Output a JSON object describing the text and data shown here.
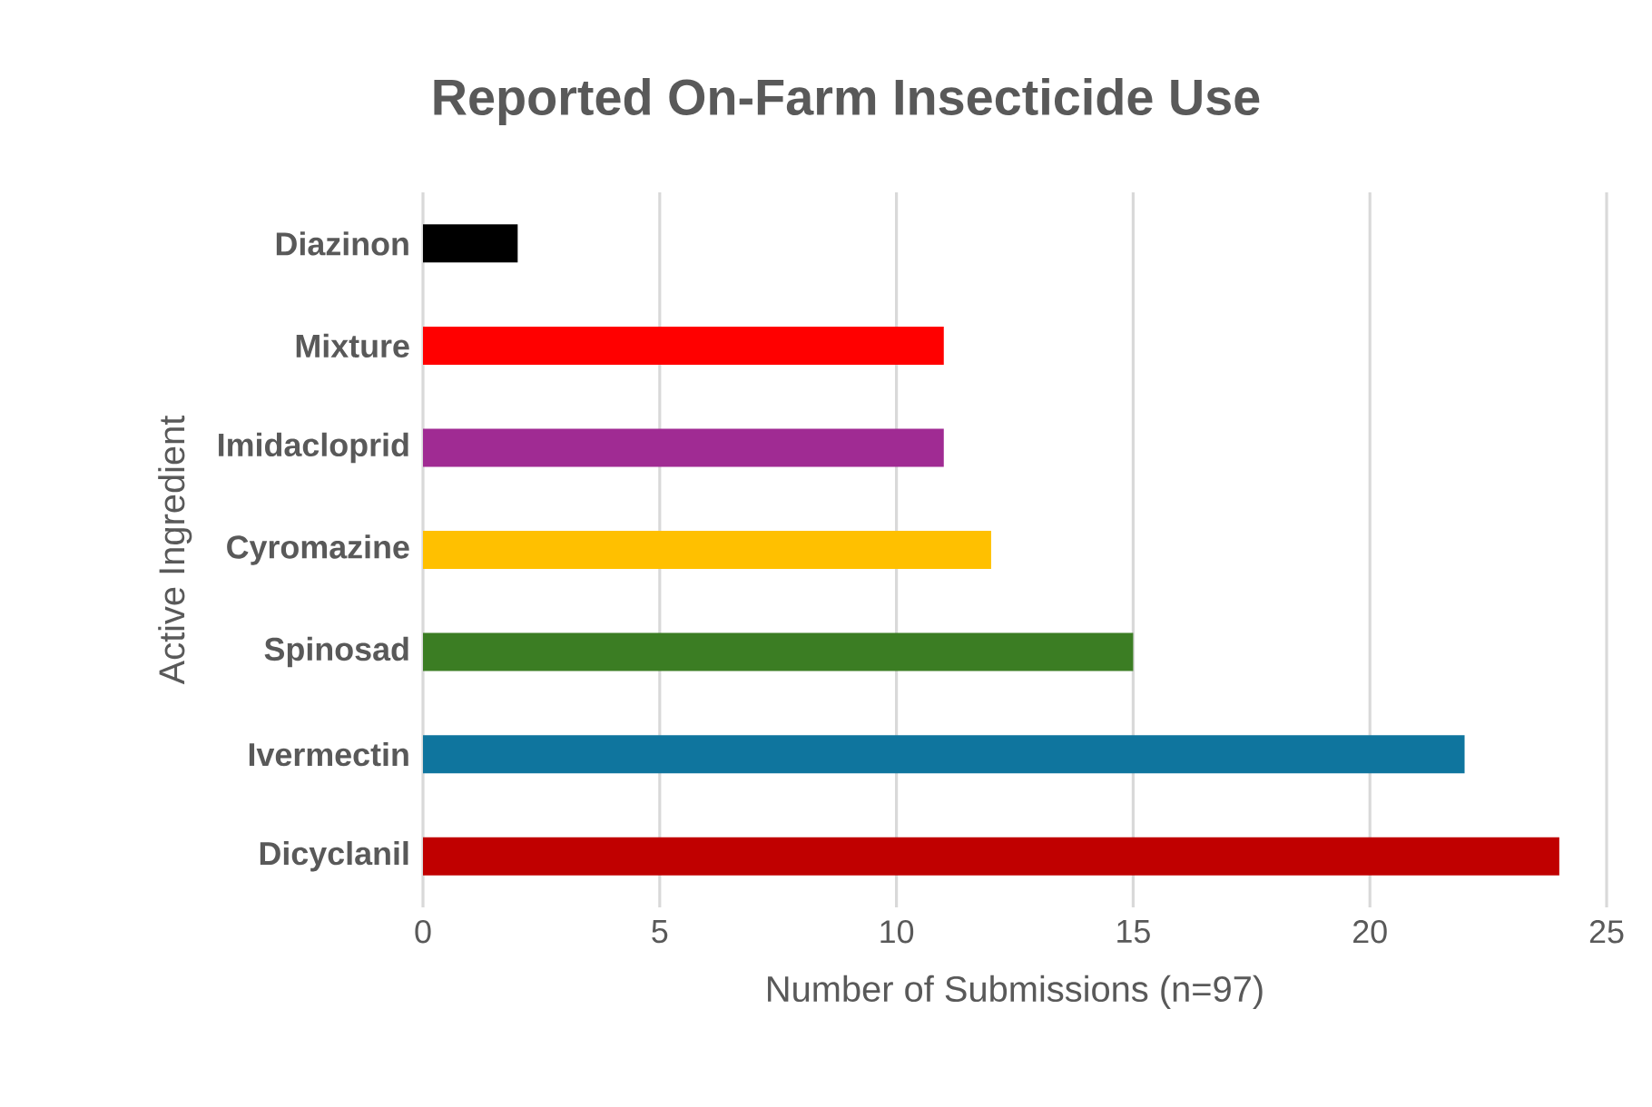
{
  "chart_data": {
    "type": "bar",
    "orientation": "horizontal",
    "title": "Reported On-Farm Insecticide Use",
    "xlabel": "Number of Submissions (n=97)",
    "ylabel": "Active Ingredient",
    "categories": [
      "Diazinon",
      "Mixture",
      "Imidacloprid",
      "Cyromazine",
      "Spinosad",
      "Ivermectin",
      "Dicyclanil"
    ],
    "values": [
      2,
      11,
      11,
      12,
      15,
      22,
      24
    ],
    "colors": [
      "#000000",
      "#ff0000",
      "#a02b93",
      "#ffc000",
      "#3b7d23",
      "#0f759e",
      "#c00000"
    ],
    "xlim": [
      0,
      25
    ],
    "xticks": [
      0,
      5,
      10,
      15,
      20,
      25
    ],
    "grid": "x"
  }
}
